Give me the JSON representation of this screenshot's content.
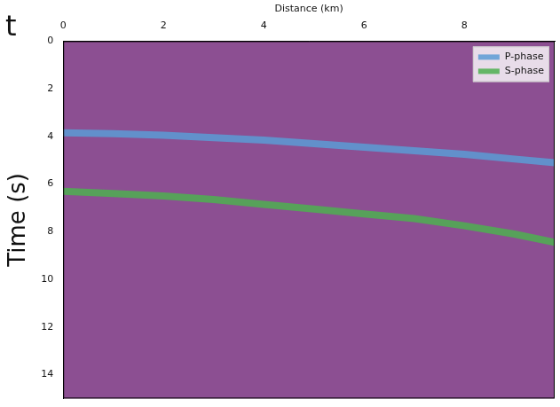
{
  "chart_data": {
    "type": "line",
    "x_label": "Distance (km)",
    "y_label": "Time (s)",
    "annotations": [
      "t"
    ],
    "xlim": [
      0,
      9.8
    ],
    "xticks": [
      0,
      2,
      4,
      6,
      8
    ],
    "ylim": [
      0,
      15
    ],
    "yticks": [
      0,
      2,
      4,
      6,
      8,
      10,
      12,
      14
    ],
    "grid": false,
    "legend": "upper right",
    "series": [
      {
        "name": "P-phase",
        "color": "#5b9bd5",
        "x": [
          0,
          1,
          2,
          3,
          4,
          5,
          6,
          7,
          8,
          9,
          9.8
        ],
        "values": [
          3.85,
          3.88,
          3.95,
          4.05,
          4.15,
          4.3,
          4.45,
          4.6,
          4.75,
          4.95,
          5.1
        ]
      },
      {
        "name": "S-phase",
        "color": "#4daf50",
        "x": [
          0,
          1,
          2,
          3,
          4,
          5,
          6,
          7,
          8,
          9,
          9.8
        ],
        "values": [
          6.3,
          6.4,
          6.5,
          6.65,
          6.85,
          7.05,
          7.25,
          7.45,
          7.75,
          8.1,
          8.45
        ]
      }
    ]
  }
}
